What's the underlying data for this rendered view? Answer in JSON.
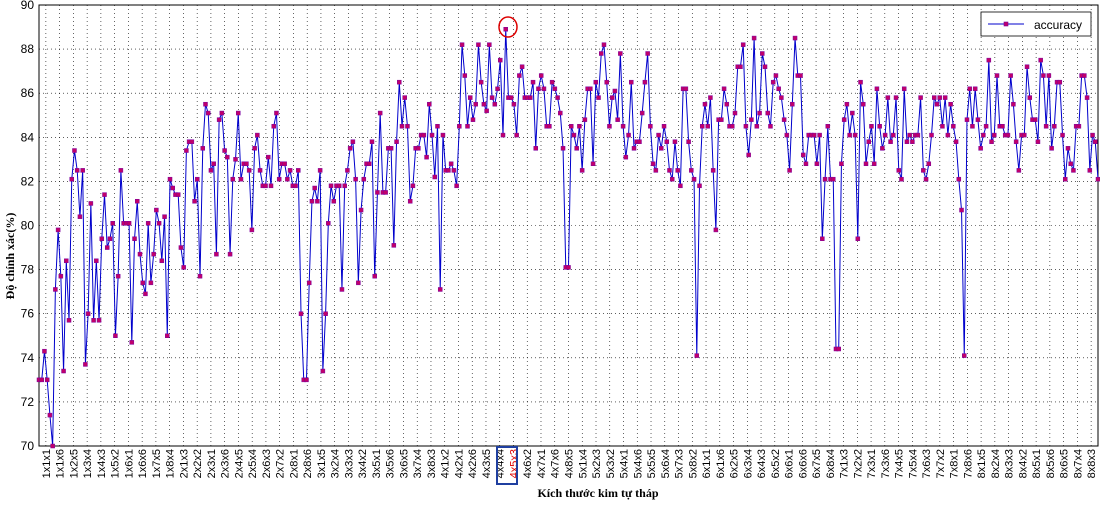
{
  "chart_data": {
    "type": "line",
    "xlabel": "Kích thước kim tự tháp",
    "ylabel": "Độ chính xác(%)",
    "ylim": [
      70,
      90
    ],
    "yticks": [
      70,
      72,
      74,
      76,
      78,
      80,
      82,
      84,
      86,
      88,
      90
    ],
    "grid": true,
    "legend_position": "top-right",
    "colors": {
      "line": "#0000cc",
      "marker_fill": "#c0006a",
      "marker_edge": "#7a00a0",
      "highlight_circle": "#dd0000",
      "highlight_box": "#1f3fa0",
      "highlight_text": "#dd0000"
    },
    "x_tick_labels": [
      "1x1x1",
      "1x1x6",
      "1x2x5",
      "1x3x4",
      "1x4x3",
      "1x5x2",
      "1x6x1",
      "1x6x6",
      "1x7x5",
      "1x8x4",
      "2x1x3",
      "2x2x2",
      "2x3x1",
      "2x3x6",
      "2x4x5",
      "2x5x4",
      "2x6x3",
      "2x7x2",
      "2x8x1",
      "2x8x6",
      "3x1x5",
      "3x2x4",
      "3x3x3",
      "3x4x2",
      "3x5x1",
      "3x5x6",
      "3x6x5",
      "3x7x4",
      "3x8x3",
      "4x1x2",
      "4x2x1",
      "4x2x6",
      "4x3x5",
      "4x4x4",
      "4x5x3",
      "4x6x2",
      "4x7x1",
      "4x7x6",
      "4x8x5",
      "5x1x4",
      "5x2x3",
      "5x3x2",
      "5x4x1",
      "5x4x6",
      "5x5x5",
      "5x6x4",
      "5x7x3",
      "5x8x2",
      "6x1x1",
      "6x1x6",
      "6x2x5",
      "6x3x4",
      "6x4x3",
      "6x5x2",
      "6x6x1",
      "6x6x6",
      "6x7x5",
      "6x8x4",
      "7x1x3",
      "7x2x2",
      "7x3x1",
      "7x3x6",
      "7x4x5",
      "7x5x4",
      "7x6x3",
      "7x7x2",
      "7x8x1",
      "7x8x6",
      "8x1x5",
      "8x2x4",
      "8x3x3",
      "8x4x2",
      "8x5x1",
      "8x5x6",
      "8x6x5",
      "8x7x4",
      "8x8x3"
    ],
    "highlight_tick": "4x5x3",
    "series": [
      {
        "name": "accuracy",
        "values": [
          73.0,
          73.0,
          74.3,
          73.0,
          71.4,
          70.0,
          77.1,
          79.8,
          77.7,
          73.4,
          78.4,
          75.7,
          82.1,
          83.4,
          82.5,
          80.4,
          82.5,
          73.7,
          76.0,
          81.0,
          75.7,
          78.4,
          75.7,
          79.4,
          81.4,
          79.0,
          79.4,
          80.1,
          75.0,
          77.7,
          82.5,
          80.1,
          80.1,
          80.1,
          74.7,
          79.4,
          81.1,
          78.7,
          77.4,
          76.9,
          80.1,
          77.4,
          78.7,
          80.7,
          80.1,
          78.4,
          80.4,
          75.0,
          82.1,
          81.7,
          81.4,
          81.4,
          79.0,
          78.1,
          83.4,
          83.8,
          83.8,
          81.1,
          82.1,
          77.7,
          83.5,
          85.5,
          85.1,
          82.5,
          82.8,
          78.7,
          84.8,
          85.1,
          83.4,
          83.1,
          78.7,
          82.1,
          83.0,
          85.1,
          82.1,
          82.8,
          82.8,
          82.5,
          79.8,
          83.5,
          84.1,
          82.5,
          81.8,
          81.8,
          83.1,
          81.8,
          84.5,
          85.1,
          82.1,
          82.8,
          82.8,
          82.1,
          82.5,
          81.8,
          81.8,
          82.5,
          76.0,
          73.0,
          73.0,
          77.4,
          81.1,
          81.7,
          81.1,
          82.5,
          73.4,
          76.0,
          80.1,
          81.8,
          81.1,
          81.8,
          81.8,
          77.1,
          81.8,
          82.5,
          83.5,
          83.8,
          82.1,
          77.4,
          80.7,
          82.1,
          82.8,
          82.8,
          83.8,
          77.7,
          81.5,
          85.1,
          81.5,
          81.5,
          83.5,
          83.5,
          79.1,
          83.8,
          86.5,
          84.5,
          85.8,
          84.5,
          81.1,
          81.8,
          83.5,
          83.5,
          84.1,
          84.1,
          83.1,
          85.5,
          84.1,
          82.2,
          84.5,
          77.1,
          84.1,
          82.5,
          82.5,
          82.8,
          82.5,
          81.8,
          84.5,
          88.2,
          86.8,
          84.5,
          85.8,
          84.8,
          85.5,
          88.2,
          86.5,
          85.5,
          85.2,
          88.2,
          85.8,
          85.5,
          86.2,
          87.5,
          84.1,
          88.9,
          85.8,
          85.8,
          85.5,
          84.1,
          86.8,
          87.2,
          85.8,
          85.8,
          85.8,
          86.5,
          83.5,
          86.2,
          86.8,
          86.2,
          84.5,
          84.5,
          86.5,
          86.2,
          85.8,
          85.1,
          83.5,
          78.1,
          78.1,
          84.5,
          84.1,
          83.5,
          84.5,
          82.5,
          84.8,
          86.2,
          86.2,
          82.8,
          86.5,
          85.8,
          87.8,
          88.2,
          86.5,
          84.5,
          85.8,
          86.1,
          84.8,
          87.8,
          84.5,
          83.1,
          84.1,
          86.5,
          83.5,
          83.8,
          83.8,
          85.1,
          86.5,
          87.8,
          84.5,
          82.8,
          82.5,
          84.1,
          83.5,
          84.5,
          83.8,
          82.5,
          82.1,
          83.8,
          82.5,
          81.8,
          86.2,
          86.2,
          83.8,
          82.5,
          82.1,
          74.1,
          81.8,
          84.5,
          85.5,
          84.5,
          85.8,
          82.5,
          79.8,
          84.8,
          84.8,
          86.2,
          85.5,
          84.5,
          84.5,
          85.1,
          87.2,
          87.2,
          88.2,
          84.5,
          83.2,
          84.8,
          88.5,
          84.5,
          85.1,
          87.8,
          87.2,
          85.1,
          84.5,
          86.5,
          86.8,
          86.2,
          85.8,
          84.8,
          84.1,
          82.5,
          85.5,
          88.5,
          86.8,
          86.8,
          83.2,
          82.8,
          84.1,
          84.1,
          84.1,
          82.8,
          84.1,
          79.4,
          82.1,
          84.5,
          82.1,
          82.1,
          74.4,
          74.4,
          82.8,
          84.8,
          85.5,
          84.1,
          85.1,
          84.1,
          79.4,
          86.5,
          85.5,
          82.8,
          83.8,
          84.5,
          82.8,
          86.2,
          84.5,
          83.5,
          84.1,
          85.8,
          83.8,
          84.1,
          85.8,
          82.5,
          82.1,
          86.2,
          83.8,
          84.1,
          83.8,
          84.1,
          84.1,
          85.8,
          82.5,
          82.1,
          82.8,
          84.1,
          85.8,
          85.5,
          85.8,
          84.5,
          85.8,
          84.1,
          85.5,
          84.5,
          83.8,
          82.1,
          80.7,
          74.1,
          84.8,
          86.2,
          84.5,
          86.2,
          84.8,
          83.5,
          84.1,
          84.5,
          87.5,
          83.8,
          84.1,
          86.8,
          84.5,
          84.5,
          84.1,
          84.1,
          86.8,
          85.5,
          83.8,
          82.5,
          84.1,
          84.1,
          87.2,
          85.8,
          84.8,
          84.8,
          83.8,
          87.5,
          86.8,
          84.5,
          86.8,
          83.5,
          84.5,
          86.5,
          86.5,
          84.1,
          82.1,
          83.5,
          82.8,
          82.5,
          84.5,
          84.5,
          86.8,
          86.8,
          85.8,
          82.5,
          84.1,
          83.8,
          82.1
        ]
      }
    ]
  }
}
